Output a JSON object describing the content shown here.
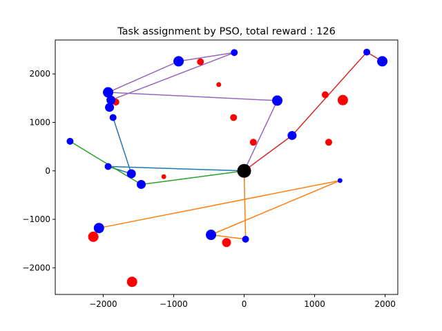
{
  "chart_data": {
    "type": "scatter",
    "title": "Task assignment by PSO, total reward : 126",
    "xlabel": "",
    "ylabel": "",
    "xlim": [
      -2680,
      2180
    ],
    "ylim": [
      -2550,
      2700
    ],
    "xticks": [
      -2000,
      -1000,
      0,
      1000,
      2000
    ],
    "yticks": [
      -2000,
      -1000,
      0,
      1000,
      2000
    ],
    "grid": false,
    "depot": {
      "x": 0,
      "y": 0,
      "color": "#000000"
    },
    "unassigned_targets": [
      {
        "x": -620,
        "y": 2250,
        "size": "small"
      },
      {
        "x": -360,
        "y": 1780,
        "size": "tiny"
      },
      {
        "x": -1820,
        "y": 1420,
        "size": "small"
      },
      {
        "x": -150,
        "y": 1100,
        "size": "small"
      },
      {
        "x": 130,
        "y": 590,
        "size": "small"
      },
      {
        "x": 1150,
        "y": 1570,
        "size": "small"
      },
      {
        "x": 1400,
        "y": 1460,
        "size": "large"
      },
      {
        "x": 1200,
        "y": 590,
        "size": "small"
      },
      {
        "x": -1140,
        "y": -120,
        "size": "tiny"
      },
      {
        "x": -2140,
        "y": -1360,
        "size": "large"
      },
      {
        "x": -250,
        "y": -1480,
        "size": "medium"
      },
      {
        "x": -1590,
        "y": -2290,
        "size": "large"
      }
    ],
    "routes": [
      {
        "color": "#1f77b4",
        "points": [
          {
            "x": 0,
            "y": 0
          },
          {
            "x": -1930,
            "y": 90
          },
          {
            "x": -1600,
            "y": -60
          },
          {
            "x": -1860,
            "y": 1100
          }
        ]
      },
      {
        "color": "#ff7f0e",
        "points": [
          {
            "x": 0,
            "y": 0
          },
          {
            "x": 20,
            "y": -1410
          },
          {
            "x": -470,
            "y": -1320
          },
          {
            "x": 1360,
            "y": -200
          },
          {
            "x": -2060,
            "y": -1180
          }
        ]
      },
      {
        "color": "#2ca02c",
        "points": [
          {
            "x": 0,
            "y": 0
          },
          {
            "x": -1460,
            "y": -280
          },
          {
            "x": -2470,
            "y": 610
          }
        ]
      },
      {
        "color": "#d62728",
        "points": [
          {
            "x": 0,
            "y": 0
          },
          {
            "x": 680,
            "y": 730
          },
          {
            "x": 1740,
            "y": 2450
          },
          {
            "x": 1960,
            "y": 2260
          }
        ]
      },
      {
        "color": "#9467bd",
        "points": [
          {
            "x": 0,
            "y": 0
          },
          {
            "x": 470,
            "y": 1450
          },
          {
            "x": -1930,
            "y": 1620
          },
          {
            "x": -930,
            "y": 2260
          },
          {
            "x": -140,
            "y": 2440
          },
          {
            "x": -1890,
            "y": 1460
          },
          {
            "x": -1910,
            "y": 1310
          }
        ]
      }
    ],
    "assigned_tasks": [
      {
        "x": -1930,
        "y": 90,
        "size": "small"
      },
      {
        "x": -1600,
        "y": -60,
        "size": "medium"
      },
      {
        "x": -1860,
        "y": 1100,
        "size": "small"
      },
      {
        "x": 20,
        "y": -1410,
        "size": "small"
      },
      {
        "x": -470,
        "y": -1320,
        "size": "large"
      },
      {
        "x": 1360,
        "y": -200,
        "size": "tiny"
      },
      {
        "x": -2060,
        "y": -1180,
        "size": "large"
      },
      {
        "x": -1460,
        "y": -280,
        "size": "medium"
      },
      {
        "x": -2470,
        "y": 610,
        "size": "small"
      },
      {
        "x": 680,
        "y": 730,
        "size": "medium"
      },
      {
        "x": 1740,
        "y": 2450,
        "size": "small"
      },
      {
        "x": 1960,
        "y": 2260,
        "size": "large"
      },
      {
        "x": 470,
        "y": 1450,
        "size": "large"
      },
      {
        "x": -1930,
        "y": 1620,
        "size": "large"
      },
      {
        "x": -930,
        "y": 2260,
        "size": "large"
      },
      {
        "x": -140,
        "y": 2440,
        "size": "small"
      },
      {
        "x": -1890,
        "y": 1460,
        "size": "medium"
      },
      {
        "x": -1910,
        "y": 1310,
        "size": "medium"
      }
    ],
    "colors": {
      "task": "#0000ff",
      "target": "#ff0000",
      "depot": "#000000"
    }
  }
}
